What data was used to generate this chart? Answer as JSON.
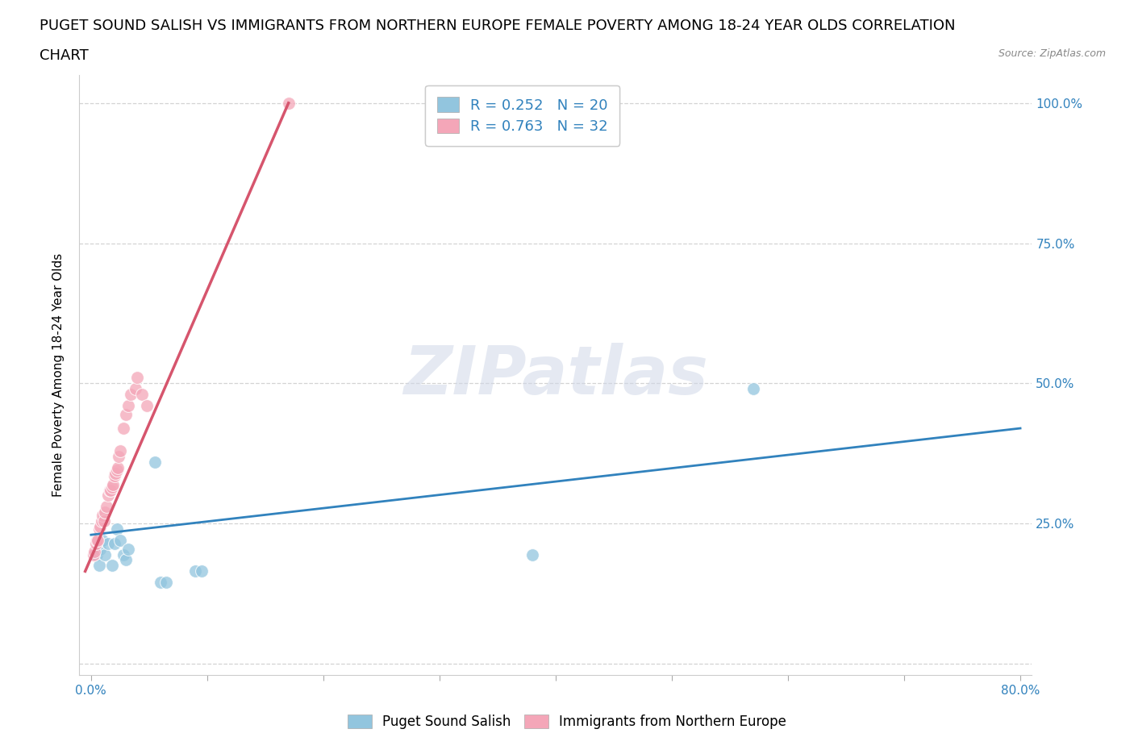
{
  "title_line1": "PUGET SOUND SALISH VS IMMIGRANTS FROM NORTHERN EUROPE FEMALE POVERTY AMONG 18-24 YEAR OLDS CORRELATION",
  "title_line2": "CHART",
  "source": "Source: ZipAtlas.com",
  "ylabel": "Female Poverty Among 18-24 Year Olds",
  "xlim": [
    0.0,
    0.8
  ],
  "ylim": [
    0.0,
    1.05
  ],
  "watermark_text": "ZIPatlas",
  "blue_color": "#92c5de",
  "pink_color": "#f4a6b8",
  "blue_line_color": "#3182bd",
  "pink_line_color": "#d6556d",
  "R_blue": 0.252,
  "N_blue": 20,
  "R_pink": 0.763,
  "N_pink": 32,
  "legend_label_blue": "Puget Sound Salish",
  "legend_label_pink": "Immigrants from Northern Europe",
  "blue_x": [
    0.005,
    0.007,
    0.008,
    0.01,
    0.012,
    0.015,
    0.018,
    0.02,
    0.022,
    0.025,
    0.028,
    0.03,
    0.032,
    0.055,
    0.06,
    0.065,
    0.09,
    0.095,
    0.38,
    0.57
  ],
  "blue_y": [
    0.195,
    0.175,
    0.205,
    0.22,
    0.195,
    0.215,
    0.175,
    0.215,
    0.24,
    0.22,
    0.195,
    0.185,
    0.205,
    0.36,
    0.145,
    0.145,
    0.165,
    0.165,
    0.195,
    0.49
  ],
  "pink_x": [
    0.002,
    0.003,
    0.004,
    0.005,
    0.006,
    0.007,
    0.008,
    0.009,
    0.01,
    0.011,
    0.012,
    0.013,
    0.015,
    0.016,
    0.017,
    0.018,
    0.019,
    0.02,
    0.021,
    0.022,
    0.023,
    0.024,
    0.025,
    0.028,
    0.03,
    0.032,
    0.034,
    0.038,
    0.04,
    0.044,
    0.048,
    0.17
  ],
  "pink_y": [
    0.195,
    0.2,
    0.215,
    0.22,
    0.22,
    0.24,
    0.245,
    0.255,
    0.265,
    0.255,
    0.27,
    0.28,
    0.3,
    0.31,
    0.31,
    0.315,
    0.32,
    0.335,
    0.34,
    0.345,
    0.35,
    0.37,
    0.38,
    0.42,
    0.445,
    0.46,
    0.48,
    0.49,
    0.51,
    0.48,
    0.46,
    1.0
  ],
  "blue_trend_x": [
    0.0,
    0.8
  ],
  "blue_trend_y": [
    0.23,
    0.42
  ],
  "pink_trend_x": [
    -0.005,
    0.17
  ],
  "pink_trend_y": [
    0.165,
    1.0
  ],
  "background_color": "#ffffff",
  "grid_color": "#c8c8c8",
  "title_fontsize": 13,
  "axis_label_fontsize": 11,
  "tick_fontsize": 11,
  "legend_fontsize": 12
}
